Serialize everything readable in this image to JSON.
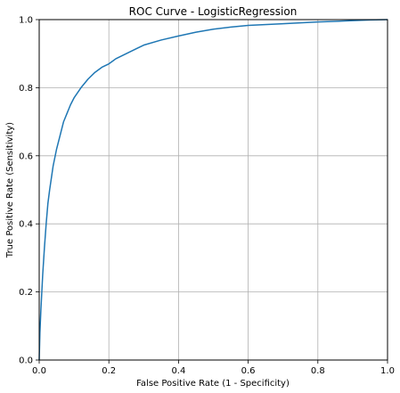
{
  "chart_data": {
    "type": "line",
    "title": "ROC Curve - LogisticRegression",
    "xlabel": "False Positive Rate (1 - Specificity)",
    "ylabel": "True Positive Rate (Sensitivity)",
    "xlim": [
      0,
      1
    ],
    "ylim": [
      0,
      1
    ],
    "xticks": [
      0,
      0.2,
      0.4,
      0.6,
      0.8,
      1
    ],
    "yticks": [
      0,
      0.2,
      0.4,
      0.6,
      0.8,
      1
    ],
    "xtick_labels": [
      "0.0",
      "0.2",
      "0.4",
      "0.6",
      "0.8",
      "1.0"
    ],
    "ytick_labels": [
      "0.0",
      "0.2",
      "0.4",
      "0.6",
      "0.8",
      "1.0"
    ],
    "grid": true,
    "line_color": "#1f77b4",
    "grid_color": "#b0b0b0",
    "series": [
      {
        "x": [
          0.0,
          0.002,
          0.005,
          0.01,
          0.015,
          0.02,
          0.025,
          0.03,
          0.04,
          0.05,
          0.06,
          0.07,
          0.08,
          0.09,
          0.1,
          0.12,
          0.14,
          0.16,
          0.18,
          0.2,
          0.22,
          0.25,
          0.28,
          0.3,
          0.35,
          0.4,
          0.45,
          0.5,
          0.55,
          0.6,
          0.7,
          0.8,
          0.9,
          0.95,
          1.0
        ],
        "y": [
          0.0,
          0.08,
          0.15,
          0.25,
          0.33,
          0.4,
          0.46,
          0.5,
          0.57,
          0.62,
          0.66,
          0.7,
          0.725,
          0.75,
          0.77,
          0.8,
          0.825,
          0.845,
          0.86,
          0.87,
          0.885,
          0.9,
          0.915,
          0.925,
          0.94,
          0.952,
          0.963,
          0.972,
          0.978,
          0.983,
          0.988,
          0.993,
          0.997,
          0.999,
          1.0
        ]
      }
    ]
  }
}
